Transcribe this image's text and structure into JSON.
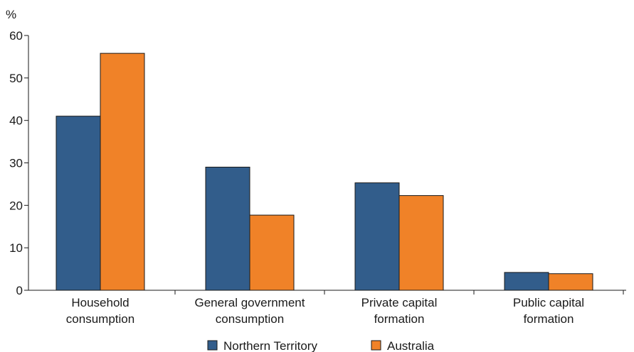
{
  "chart_data": {
    "type": "bar",
    "ylabel": "%",
    "ylim": [
      0,
      60
    ],
    "yticks": [
      0,
      10,
      20,
      30,
      40,
      50,
      60
    ],
    "categories": [
      [
        "Household",
        "consumption"
      ],
      [
        "General government",
        "consumption"
      ],
      [
        "Private capital",
        "formation"
      ],
      [
        "Public capital",
        "formation"
      ]
    ],
    "series": [
      {
        "name": "Northern Territory",
        "color": "#325d8b",
        "values": [
          41.0,
          29.0,
          25.3,
          4.2
        ]
      },
      {
        "name": "Australia",
        "color": "#f08228",
        "values": [
          55.8,
          17.7,
          22.3,
          3.9
        ]
      }
    ],
    "legend_position": "bottom-center",
    "grid": false
  }
}
